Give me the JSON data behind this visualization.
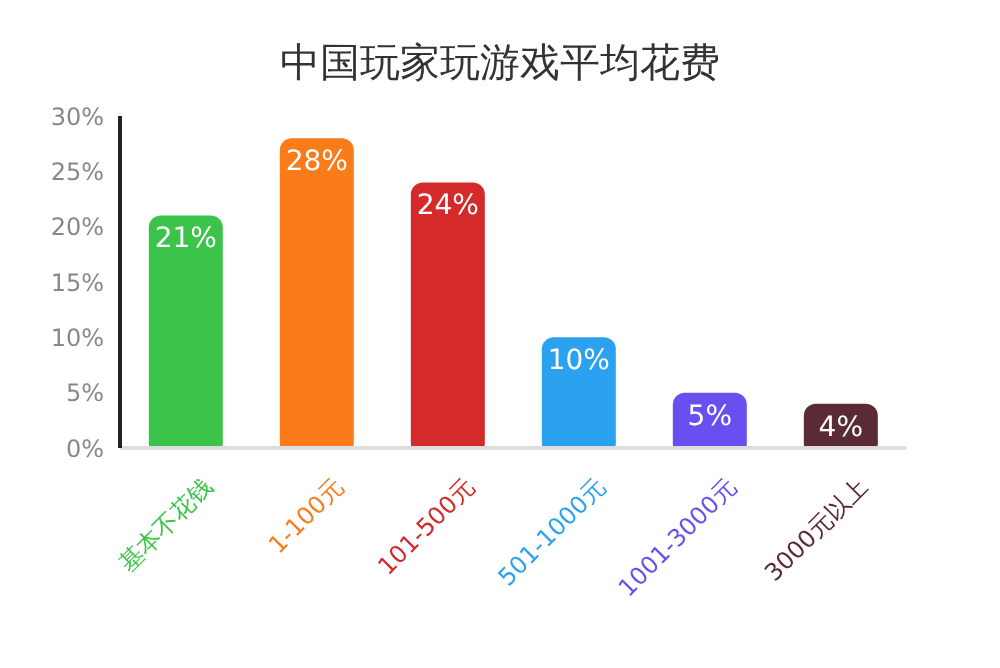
{
  "chart_data": {
    "type": "bar",
    "title": "中国玩家玩游戏平均花费",
    "categories": [
      "基本不花钱",
      "1-100元",
      "101-500元",
      "501-1000元",
      "1001-3000元",
      "3000元以上"
    ],
    "values": [
      21,
      28,
      24,
      10,
      5,
      4
    ],
    "value_labels": [
      "21%",
      "28%",
      "24%",
      "10%",
      "5%",
      "4%"
    ],
    "colors": [
      "#3cc44a",
      "#f97b1a",
      "#d42a2a",
      "#2aa2f0",
      "#6a4ff0",
      "#5a2a35"
    ],
    "ylim": [
      0,
      30
    ],
    "yticks": [
      {
        "value": 0,
        "label": "0%"
      },
      {
        "value": 5,
        "label": "5%"
      },
      {
        "value": 10,
        "label": "10%"
      },
      {
        "value": 15,
        "label": "15%"
      },
      {
        "value": 20,
        "label": "20%"
      },
      {
        "value": 25,
        "label": "25%"
      },
      {
        "value": 30,
        "label": "30%"
      }
    ],
    "tick_labels": true
  }
}
